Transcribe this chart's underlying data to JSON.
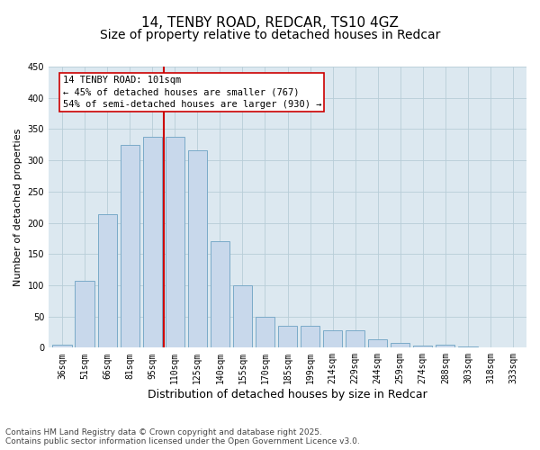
{
  "title": "14, TENBY ROAD, REDCAR, TS10 4GZ",
  "subtitle": "Size of property relative to detached houses in Redcar",
  "xlabel": "Distribution of detached houses by size in Redcar",
  "ylabel": "Number of detached properties",
  "bar_color": "#c8d8eb",
  "bar_edge_color": "#7aaac8",
  "grid_color": "#b8cdd8",
  "background_color": "#dce8f0",
  "annotation_box_color": "#cc0000",
  "vline_color": "#cc0000",
  "categories": [
    "36sqm",
    "51sqm",
    "66sqm",
    "81sqm",
    "95sqm",
    "110sqm",
    "125sqm",
    "140sqm",
    "155sqm",
    "170sqm",
    "185sqm",
    "199sqm",
    "214sqm",
    "229sqm",
    "244sqm",
    "259sqm",
    "274sqm",
    "288sqm",
    "303sqm",
    "318sqm",
    "333sqm"
  ],
  "values": [
    5,
    107,
    213,
    325,
    338,
    337,
    316,
    170,
    100,
    50,
    35,
    35,
    28,
    28,
    14,
    8,
    4,
    5,
    2,
    1,
    1
  ],
  "vline_x": 4.5,
  "annotation_line1": "14 TENBY ROAD: 101sqm",
  "annotation_line2": "← 45% of detached houses are smaller (767)",
  "annotation_line3": "54% of semi-detached houses are larger (930) →",
  "ylim": [
    0,
    450
  ],
  "yticks": [
    0,
    50,
    100,
    150,
    200,
    250,
    300,
    350,
    400,
    450
  ],
  "footnote": "Contains HM Land Registry data © Crown copyright and database right 2025.\nContains public sector information licensed under the Open Government Licence v3.0.",
  "title_fontsize": 11,
  "subtitle_fontsize": 10,
  "xlabel_fontsize": 9,
  "ylabel_fontsize": 8,
  "tick_fontsize": 7,
  "annotation_fontsize": 7.5,
  "footnote_fontsize": 6.5
}
